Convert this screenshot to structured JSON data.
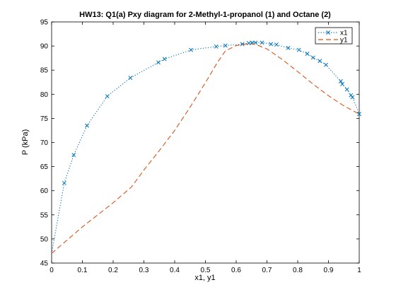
{
  "chart_data": {
    "type": "line",
    "title": "HW13: Q1(a) Pxy diagram for 2-Methyl-1-propanol (1) and Octane (2)",
    "xlabel": "x1, y1",
    "ylabel": "P (kPa)",
    "xlim": [
      0,
      1
    ],
    "ylim": [
      45,
      95
    ],
    "xticks": [
      "0",
      "0.1",
      "0.2",
      "0.3",
      "0.4",
      "0.5",
      "0.6",
      "0.7",
      "0.8",
      "0.9",
      "1"
    ],
    "xtick_values": [
      0,
      0.1,
      0.2,
      0.3,
      0.4,
      0.5,
      0.6,
      0.7,
      0.8,
      0.9,
      1
    ],
    "yticks": [
      "45",
      "50",
      "55",
      "60",
      "65",
      "70",
      "75",
      "80",
      "85",
      "90",
      "95"
    ],
    "ytick_values": [
      45,
      50,
      55,
      60,
      65,
      70,
      75,
      80,
      85,
      90,
      95
    ],
    "grid": false,
    "legend_position": "top-right",
    "series": [
      {
        "name": "x1",
        "color": "#0072BD",
        "line_style": "dotted",
        "marker": "x",
        "x": [
          0.0,
          0.041,
          0.072,
          0.115,
          0.181,
          0.256,
          0.347,
          0.367,
          0.453,
          0.535,
          0.565,
          0.62,
          0.641,
          0.652,
          0.663,
          0.684,
          0.713,
          0.731,
          0.769,
          0.804,
          0.831,
          0.85,
          0.872,
          0.892,
          0.94,
          0.945,
          0.96,
          0.973,
          0.978,
          1.0
        ],
        "y": [
          47.0,
          61.6,
          67.4,
          73.5,
          79.6,
          83.4,
          86.6,
          87.3,
          89.2,
          89.9,
          90.1,
          90.4,
          90.6,
          90.7,
          90.7,
          90.7,
          90.4,
          90.3,
          89.6,
          89.2,
          88.4,
          87.6,
          86.9,
          86.1,
          82.7,
          82.1,
          81.0,
          79.8,
          79.4,
          75.9
        ],
        "markers_at": [
          0.041,
          0.072,
          0.115,
          0.181,
          0.256,
          0.347,
          0.367,
          0.453,
          0.535,
          0.565,
          0.62,
          0.641,
          0.652,
          0.663,
          0.684,
          0.713,
          0.731,
          0.769,
          0.804,
          0.831,
          0.85,
          0.872,
          0.892,
          0.94,
          0.945,
          0.96,
          0.973,
          0.978,
          1.0
        ]
      },
      {
        "name": "y1",
        "color": "#D95319",
        "line_style": "dashed",
        "marker": "none",
        "x": [
          0.0,
          0.1,
          0.2,
          0.26,
          0.3,
          0.35,
          0.4,
          0.45,
          0.5,
          0.54,
          0.565,
          0.6,
          0.64,
          0.665,
          0.7,
          0.75,
          0.8,
          0.85,
          0.9,
          0.95,
          1.0
        ],
        "y": [
          47.0,
          52.5,
          57.5,
          60.8,
          64.3,
          68.3,
          72.5,
          77.3,
          82.4,
          86.7,
          89.0,
          90.1,
          90.5,
          90.3,
          89.4,
          87.2,
          84.7,
          82.1,
          79.7,
          77.6,
          75.9
        ]
      }
    ]
  }
}
